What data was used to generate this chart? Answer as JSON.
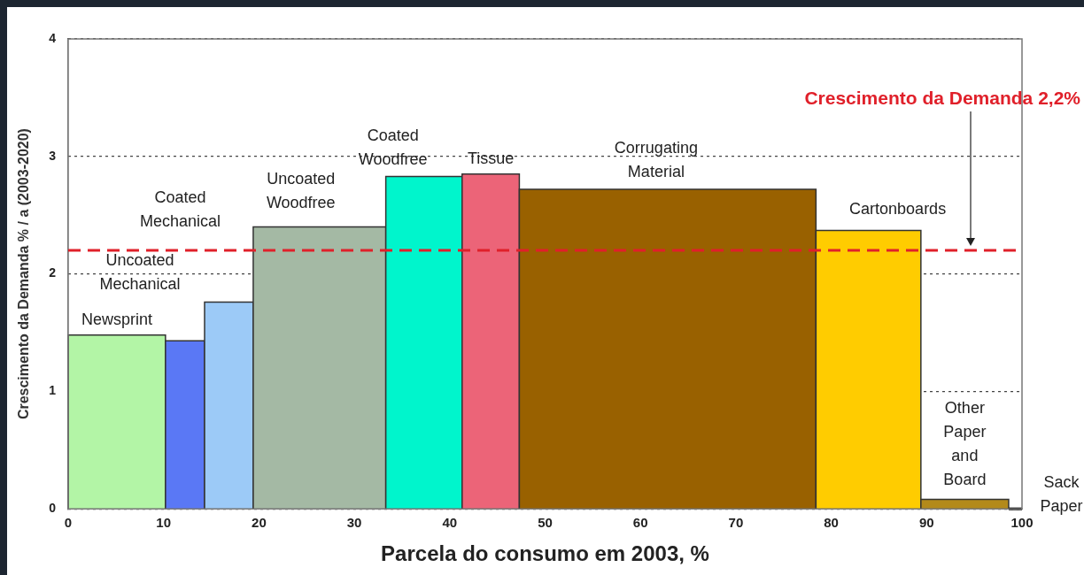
{
  "chart_data": {
    "type": "histogram",
    "xlabel": "Parcela do consumo em 2003, %",
    "ylabel": "Crescimento da Demanda % / a (2003-2020)",
    "bins": [
      0,
      10.2,
      14.3,
      19.4,
      33.3,
      41.3,
      47.3,
      78.4,
      89.4,
      98.6,
      100
    ],
    "values": [
      1.48,
      1.43,
      1.76,
      2.4,
      2.83,
      2.85,
      2.72,
      2.37,
      0.08,
      0
    ],
    "colors": [
      "#b3f5a6",
      "#5a78f5",
      "#9ccaf7",
      "#a4b9a4",
      "#00f5cc",
      "#ec6478",
      "#996100",
      "#ffcc00",
      "#b38a1a",
      "#000000"
    ],
    "xlim": [
      0,
      100
    ],
    "xticks": [
      0,
      10,
      20,
      30,
      40,
      50,
      60,
      70,
      80,
      90,
      100
    ],
    "ylim": [
      0,
      4
    ],
    "yticks": [
      0,
      1,
      2,
      3,
      4
    ],
    "grid": "y",
    "ref_lines": [
      {
        "axis": "y",
        "value": 2.2,
        "label": "Crescimento da Demanda 2,2%",
        "color": "#e0202a",
        "line_style": "dashed"
      }
    ],
    "annotations": [
      "Newsprint",
      "Uncoated\nMechanical",
      "Coated\nMechanical",
      "Uncoated\nWoodfree",
      "Coated\nWoodfree",
      "Tissue",
      "Corrugating\nMaterial",
      "Cartonboards",
      "Other\nPaper\nand\nBoard",
      "Sack\nPaper"
    ]
  }
}
